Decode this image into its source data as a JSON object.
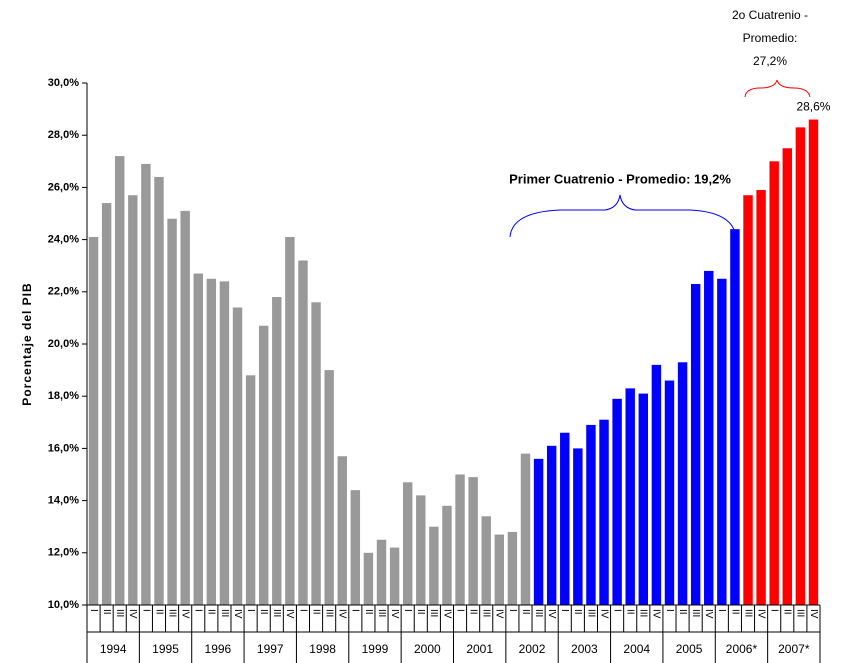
{
  "chart_data": {
    "type": "bar",
    "y_label": "Porcentaje del PIB",
    "categories": [
      "I",
      "II",
      "III",
      "IV",
      "I",
      "II",
      "III",
      "IV",
      "I",
      "II",
      "III",
      "IV",
      "I",
      "II",
      "III",
      "IV",
      "I",
      "II",
      "III",
      "IV",
      "I",
      "II",
      "III",
      "IV",
      "I",
      "II",
      "III",
      "IV",
      "I",
      "II",
      "III",
      "IV",
      "I",
      "II",
      "III",
      "IV",
      "I",
      "II",
      "III",
      "IV",
      "I",
      "II",
      "III",
      "IV",
      "I",
      "II",
      "III",
      "IV",
      "I",
      "II",
      "III",
      "IV",
      "I",
      "II",
      "III",
      "IV"
    ],
    "years": [
      "1994",
      "1995",
      "1996",
      "1997",
      "1998",
      "1999",
      "2000",
      "2001",
      "2002",
      "2003",
      "2004",
      "2005",
      "2006*",
      "2007*"
    ],
    "values": [
      24.1,
      25.4,
      27.2,
      25.7,
      26.9,
      26.4,
      24.8,
      25.1,
      22.7,
      22.5,
      22.4,
      21.4,
      18.8,
      20.7,
      21.8,
      24.1,
      23.2,
      21.6,
      19.0,
      15.7,
      14.4,
      12.0,
      12.5,
      12.2,
      14.7,
      14.2,
      13.0,
      13.8,
      15.0,
      14.9,
      13.4,
      12.7,
      12.8,
      15.8,
      15.6,
      16.1,
      16.6,
      16.0,
      16.9,
      17.1,
      17.9,
      18.3,
      18.1,
      19.2,
      18.6,
      19.3,
      22.3,
      22.8,
      22.5,
      24.4,
      25.7,
      25.9,
      27.0,
      27.5,
      28.3,
      28.6
    ],
    "value_labels": [
      null,
      null,
      null,
      null,
      null,
      null,
      null,
      null,
      null,
      null,
      null,
      null,
      null,
      null,
      null,
      null,
      null,
      null,
      null,
      null,
      null,
      null,
      null,
      null,
      null,
      null,
      null,
      null,
      null,
      null,
      null,
      null,
      null,
      null,
      null,
      null,
      null,
      null,
      null,
      null,
      null,
      null,
      null,
      null,
      null,
      null,
      null,
      null,
      null,
      null,
      null,
      null,
      null,
      null,
      null,
      "28,6%"
    ],
    "colors": [
      "#999999",
      "#999999",
      "#999999",
      "#999999",
      "#999999",
      "#999999",
      "#999999",
      "#999999",
      "#999999",
      "#999999",
      "#999999",
      "#999999",
      "#999999",
      "#999999",
      "#999999",
      "#999999",
      "#999999",
      "#999999",
      "#999999",
      "#999999",
      "#999999",
      "#999999",
      "#999999",
      "#999999",
      "#999999",
      "#999999",
      "#999999",
      "#999999",
      "#999999",
      "#999999",
      "#999999",
      "#999999",
      "#999999",
      "#999999",
      "#0000ff",
      "#0000ff",
      "#0000ff",
      "#0000ff",
      "#0000ff",
      "#0000ff",
      "#0000ff",
      "#0000ff",
      "#0000ff",
      "#0000ff",
      "#0000ff",
      "#0000ff",
      "#0000ff",
      "#0000ff",
      "#0000ff",
      "#0000ff",
      "#ff0000",
      "#ff0000",
      "#ff0000",
      "#ff0000",
      "#ff0000",
      "#ff0000"
    ],
    "ylim": [
      10,
      30
    ],
    "yticks": [
      {
        "value": 10,
        "label": "10,0%"
      },
      {
        "value": 12,
        "label": "12,0%"
      },
      {
        "value": 14,
        "label": "14,0%"
      },
      {
        "value": 16,
        "label": "16,0%"
      },
      {
        "value": 18,
        "label": "18,0%"
      },
      {
        "value": 20,
        "label": "20,0%"
      },
      {
        "value": 22,
        "label": "22,0%"
      },
      {
        "value": 24,
        "label": "24,0%"
      },
      {
        "value": 26,
        "label": "26,0%"
      },
      {
        "value": 28,
        "label": "28,0%"
      },
      {
        "value": 30,
        "label": "30,0%"
      }
    ],
    "annotations": [
      "Primer Cuatrenio - Promedio: 19,2%",
      [
        "2o Cuatrenio -",
        "Promedio:",
        "27,2%"
      ]
    ]
  }
}
